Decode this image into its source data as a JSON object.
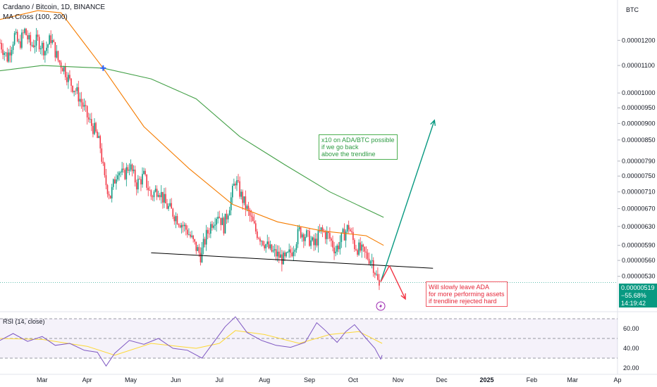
{
  "header": {
    "title": "Cardano / Bitcoin, 1D, BINANCE",
    "indicator": "MA Cross (100, 200)",
    "currency": "BTC"
  },
  "rsi_panel": {
    "label": "RSI (14, close)"
  },
  "price_badge": {
    "price": "0.00000519",
    "change": "−55.68%",
    "countdown": "14:19:42"
  },
  "annotations": {
    "bullish": [
      "x10 on ADA/BTC possible",
      "if we go back",
      "above the trendline"
    ],
    "bearish": [
      "Will slowly leave ADA",
      "for more performing assets",
      "if trendline rejected hard"
    ]
  },
  "colors": {
    "up": "#089981",
    "down": "#f23645",
    "ma_fast": "#f57c00",
    "ma_slow": "#43a047",
    "rsi": "#7e57c2",
    "rsi_ma": "#fdd835",
    "trendline": "#000000",
    "arrow_up": "#089981",
    "arrow_down": "#f23645",
    "cross_marker": "#2962ff"
  },
  "chart_data": [
    {
      "type": "candlestick",
      "title": "Cardano / Bitcoin, 1D, BINANCE",
      "y_scale": "log",
      "ylim": [
        4.7e-06,
        1.38e-05
      ],
      "y_ticks": [
        "0.00001200",
        "0.00001100",
        "0.00001000",
        "0.00000950",
        "0.00000900",
        "0.00000850",
        "0.00000790",
        "0.00000750",
        "0.00000710",
        "0.00000670",
        "0.00000630",
        "0.00000590",
        "0.00000560",
        "0.00000530"
      ],
      "x_ticks": [
        "Mar",
        "Apr",
        "May",
        "Jun",
        "Jul",
        "Aug",
        "Sep",
        "Oct",
        "Nov",
        "Dec",
        "2025",
        "Feb",
        "Mar",
        "Ap"
      ],
      "x_tick_dates": [
        "2024-03-01",
        "2024-04-01",
        "2024-05-01",
        "2024-06-01",
        "2024-07-01",
        "2024-08-01",
        "2024-09-01",
        "2024-10-01",
        "2024-11-01",
        "2024-12-01",
        "2025-01-01",
        "2025-02-01",
        "2025-03-01",
        "2025-04-01"
      ],
      "xlim": [
        "2024-02-01",
        "2025-04-01"
      ],
      "last_price": 5.19e-06,
      "change_label": "−55.68%",
      "close_path": [
        [
          "2024-02-01",
          1.19e-05
        ],
        [
          "2024-02-06",
          1.13e-05
        ],
        [
          "2024-02-11",
          1.22e-05
        ],
        [
          "2024-02-14",
          1.18e-05
        ],
        [
          "2024-02-18",
          1.24e-05
        ],
        [
          "2024-02-22",
          1.18e-05
        ],
        [
          "2024-02-27",
          1.2e-05
        ],
        [
          "2024-03-03",
          1.16e-05
        ],
        [
          "2024-03-07",
          1.21e-05
        ],
        [
          "2024-03-12",
          1.12e-05
        ],
        [
          "2024-03-16",
          1.09e-05
        ],
        [
          "2024-03-20",
          1.04e-05
        ],
        [
          "2024-03-24",
          1.01e-05
        ],
        [
          "2024-03-28",
          9.7e-06
        ],
        [
          "2024-04-02",
          9.1e-06
        ],
        [
          "2024-04-06",
          8.8e-06
        ],
        [
          "2024-04-10",
          8.3e-06
        ],
        [
          "2024-04-13",
          7.4e-06
        ],
        [
          "2024-04-17",
          7e-06
        ],
        [
          "2024-04-22",
          7.7e-06
        ],
        [
          "2024-04-26",
          7.5e-06
        ],
        [
          "2024-04-30",
          7.8e-06
        ],
        [
          "2024-05-05",
          7.3e-06
        ],
        [
          "2024-05-10",
          7.5e-06
        ],
        [
          "2024-05-15",
          7e-06
        ],
        [
          "2024-05-20",
          7.2e-06
        ],
        [
          "2024-05-25",
          6.8e-06
        ],
        [
          "2024-05-30",
          6.6e-06
        ],
        [
          "2024-06-04",
          6.4e-06
        ],
        [
          "2024-06-09",
          6.2e-06
        ],
        [
          "2024-06-14",
          5.9e-06
        ],
        [
          "2024-06-18",
          5.7e-06
        ],
        [
          "2024-06-22",
          6.1e-06
        ],
        [
          "2024-06-26",
          6.4e-06
        ],
        [
          "2024-06-30",
          6.6e-06
        ],
        [
          "2024-07-04",
          6.3e-06
        ],
        [
          "2024-07-08",
          6.8e-06
        ],
        [
          "2024-07-12",
          7.4e-06
        ],
        [
          "2024-07-16",
          7e-06
        ],
        [
          "2024-07-21",
          6.6e-06
        ],
        [
          "2024-07-26",
          6.2e-06
        ],
        [
          "2024-07-31",
          6e-06
        ],
        [
          "2024-08-05",
          5.8e-06
        ],
        [
          "2024-08-10",
          5.7e-06
        ],
        [
          "2024-08-15",
          5.6e-06
        ],
        [
          "2024-08-20",
          5.8e-06
        ],
        [
          "2024-08-25",
          6.2e-06
        ],
        [
          "2024-08-30",
          6.1e-06
        ],
        [
          "2024-09-04",
          5.9e-06
        ],
        [
          "2024-09-09",
          6.2e-06
        ],
        [
          "2024-09-14",
          6.1e-06
        ],
        [
          "2024-09-19",
          5.8e-06
        ],
        [
          "2024-09-24",
          6.1e-06
        ],
        [
          "2024-09-28",
          6.3e-06
        ],
        [
          "2024-10-02",
          5.9e-06
        ],
        [
          "2024-10-06",
          5.8e-06
        ],
        [
          "2024-10-10",
          5.7e-06
        ],
        [
          "2024-10-14",
          5.6e-06
        ],
        [
          "2024-10-17",
          5.3e-06
        ],
        [
          "2024-10-19",
          5.1e-06
        ],
        [
          "2024-10-20",
          5.2e-06
        ]
      ],
      "ma_fast_path": [
        [
          "2024-02-01",
          1.29e-05
        ],
        [
          "2024-02-27",
          1.33e-05
        ],
        [
          "2024-03-14",
          1.32e-05
        ],
        [
          "2024-04-12",
          1.09e-05
        ],
        [
          "2024-05-10",
          8.9e-06
        ],
        [
          "2024-06-10",
          7.7e-06
        ],
        [
          "2024-07-10",
          6.8e-06
        ],
        [
          "2024-08-10",
          6.4e-06
        ],
        [
          "2024-09-10",
          6.2e-06
        ],
        [
          "2024-10-10",
          6.1e-06
        ],
        [
          "2024-10-22",
          5.9e-06
        ]
      ],
      "ma_slow_path": [
        [
          "2024-02-01",
          1.08e-05
        ],
        [
          "2024-03-01",
          1.1e-05
        ],
        [
          "2024-04-12",
          1.09e-05
        ],
        [
          "2024-05-15",
          1.05e-05
        ],
        [
          "2024-06-15",
          9.8e-06
        ],
        [
          "2024-07-15",
          8.6e-06
        ],
        [
          "2024-08-15",
          7.8e-06
        ],
        [
          "2024-09-15",
          7.1e-06
        ],
        [
          "2024-10-22",
          6.5e-06
        ]
      ],
      "cross_point": [
        "2024-04-12",
        1.09e-05
      ],
      "trendline": [
        [
          "2024-05-15",
          5.75e-06
        ],
        [
          "2024-11-25",
          5.45e-06
        ]
      ],
      "arrow_up": [
        [
          "2024-10-20",
          5.2e-06
        ],
        [
          "2024-11-26",
          9.1e-06
        ]
      ],
      "arrow_down_path": [
        [
          "2024-10-20",
          5.2e-06
        ],
        [
          "2024-10-26",
          5.5e-06
        ],
        [
          "2024-11-06",
          4.9e-06
        ]
      ]
    },
    {
      "type": "line",
      "title": "RSI (14, close)",
      "ylim": [
        15,
        75
      ],
      "y_ticks": [
        60.0,
        40.0,
        20.0
      ],
      "y_tick_labels": [
        "60.00",
        "40.00",
        "20.00"
      ],
      "bands": [
        70,
        50,
        30
      ],
      "xlim": [
        "2024-02-01",
        "2025-04-01"
      ],
      "series": [
        {
          "role": "rsi",
          "values": [
            [
              "2024-02-01",
              48
            ],
            [
              "2024-02-10",
              55
            ],
            [
              "2024-02-20",
              47
            ],
            [
              "2024-03-01",
              52
            ],
            [
              "2024-03-10",
              43
            ],
            [
              "2024-03-20",
              45
            ],
            [
              "2024-03-30",
              38
            ],
            [
              "2024-04-08",
              36
            ],
            [
              "2024-04-14",
              22
            ],
            [
              "2024-04-20",
              35
            ],
            [
              "2024-04-30",
              48
            ],
            [
              "2024-05-10",
              44
            ],
            [
              "2024-05-20",
              50
            ],
            [
              "2024-05-30",
              40
            ],
            [
              "2024-06-09",
              38
            ],
            [
              "2024-06-19",
              30
            ],
            [
              "2024-06-27",
              46
            ],
            [
              "2024-07-05",
              62
            ],
            [
              "2024-07-12",
              72
            ],
            [
              "2024-07-20",
              56
            ],
            [
              "2024-07-30",
              48
            ],
            [
              "2024-08-09",
              43
            ],
            [
              "2024-08-19",
              41
            ],
            [
              "2024-08-29",
              46
            ],
            [
              "2024-09-06",
              66
            ],
            [
              "2024-09-12",
              58
            ],
            [
              "2024-09-20",
              46
            ],
            [
              "2024-09-26",
              57
            ],
            [
              "2024-10-02",
              64
            ],
            [
              "2024-10-10",
              50
            ],
            [
              "2024-10-16",
              40
            ],
            [
              "2024-10-20",
              29
            ],
            [
              "2024-10-21",
              33
            ]
          ]
        },
        {
          "role": "rsi-ma",
          "values": [
            [
              "2024-02-01",
              50
            ],
            [
              "2024-03-01",
              49
            ],
            [
              "2024-04-01",
              42
            ],
            [
              "2024-04-20",
              33
            ],
            [
              "2024-05-15",
              45
            ],
            [
              "2024-06-15",
              40
            ],
            [
              "2024-07-01",
              45
            ],
            [
              "2024-07-12",
              58
            ],
            [
              "2024-08-01",
              54
            ],
            [
              "2024-08-25",
              45
            ],
            [
              "2024-09-15",
              54
            ],
            [
              "2024-10-05",
              57
            ],
            [
              "2024-10-21",
              45
            ]
          ]
        }
      ]
    }
  ]
}
